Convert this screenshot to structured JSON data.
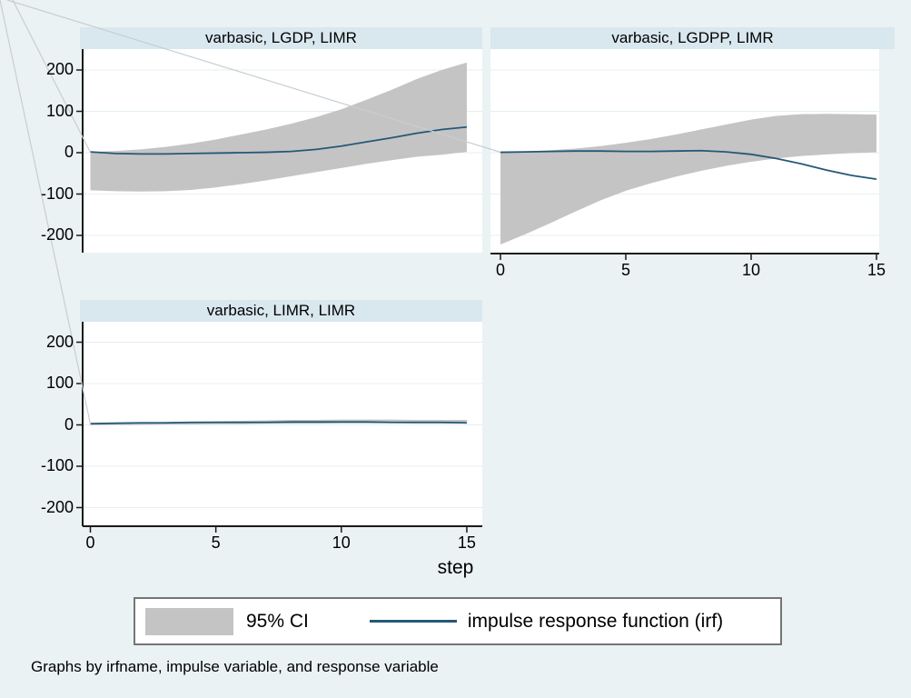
{
  "figure": {
    "background": "#eaf2f3",
    "panel_title_background": "#d9e7ef",
    "plot_background": "#ffffff",
    "gridline_color": "#e4eff4",
    "axis_color": "#1a1a1a",
    "artifact_line_color": "#c9ced1",
    "xlabel": "step",
    "caption": "Graphs by irfname, impulse variable, and response variable"
  },
  "legend": {
    "ci_label": "95% CI",
    "irf_label": "impulse response function (irf)",
    "ci_color": "#c4c4c4",
    "line_color": "#255876"
  },
  "chart_data": [
    {
      "type": "area",
      "title": "varbasic, LGDP, LIMR",
      "x": [
        0,
        1,
        2,
        3,
        4,
        5,
        6,
        7,
        8,
        9,
        10,
        11,
        12,
        13,
        14,
        15
      ],
      "series": [
        {
          "name": "irf",
          "values": [
            2,
            -2,
            -3,
            -3,
            -2,
            -1,
            0,
            1,
            3,
            8,
            16,
            26,
            36,
            47,
            56,
            62
          ]
        },
        {
          "name": "ci_upper",
          "values": [
            2,
            4,
            8,
            14,
            22,
            32,
            44,
            56,
            70,
            86,
            105,
            128,
            152,
            178,
            200,
            218
          ]
        },
        {
          "name": "ci_lower",
          "values": [
            2,
            -5,
            -10,
            -18,
            -27,
            -37,
            -47,
            -57,
            -67,
            -76,
            -84,
            -90,
            -93,
            -94,
            -93,
            -91
          ]
        }
      ],
      "xticks": [
        0,
        5,
        10,
        15
      ],
      "yticks": [
        200,
        100,
        0,
        -100,
        -200
      ],
      "ylim": [
        -250,
        250
      ],
      "show_y_axis": true,
      "show_x_axis": false,
      "grid": true
    },
    {
      "type": "area",
      "title": "varbasic, LGDPP, LIMR",
      "x": [
        0,
        1,
        2,
        3,
        4,
        5,
        6,
        7,
        8,
        9,
        10,
        11,
        12,
        13,
        14,
        15
      ],
      "series": [
        {
          "name": "irf",
          "values": [
            1,
            2,
            3,
            4,
            4,
            3,
            3,
            4,
            5,
            2,
            -4,
            -14,
            -27,
            -42,
            -55,
            -64
          ]
        },
        {
          "name": "ci_upper",
          "values": [
            1,
            3,
            6,
            10,
            16,
            24,
            33,
            44,
            56,
            68,
            80,
            89,
            93,
            94,
            93,
            92
          ]
        },
        {
          "name": "ci_lower",
          "values": [
            1,
            -1,
            -4,
            -8,
            -14,
            -22,
            -32,
            -44,
            -58,
            -74,
            -92,
            -115,
            -142,
            -170,
            -197,
            -222
          ]
        }
      ],
      "xticks": [
        0,
        5,
        10,
        15
      ],
      "yticks": [
        200,
        100,
        0,
        -100,
        -200
      ],
      "ylim": [
        -250,
        250
      ],
      "show_y_axis": false,
      "show_x_axis": true,
      "grid": true
    },
    {
      "type": "area",
      "title": "varbasic, LIMR, LIMR",
      "x": [
        0,
        1,
        2,
        3,
        4,
        5,
        6,
        7,
        8,
        9,
        10,
        11,
        12,
        13,
        14,
        15
      ],
      "series": [
        {
          "name": "irf",
          "values": [
            3,
            4,
            5,
            5,
            6,
            6,
            6,
            6,
            7,
            7,
            7,
            7,
            6,
            6,
            6,
            5
          ]
        },
        {
          "name": "ci_upper",
          "values": [
            3,
            5,
            6,
            7,
            8,
            9,
            10,
            11,
            12,
            12,
            13,
            13,
            13,
            12,
            12,
            12
          ]
        },
        {
          "name": "ci_lower",
          "values": [
            3,
            3,
            3,
            4,
            4,
            4,
            3,
            3,
            3,
            2,
            2,
            1,
            1,
            0,
            0,
            -1
          ]
        }
      ],
      "xticks": [
        0,
        5,
        10,
        15
      ],
      "yticks": [
        200,
        100,
        0,
        -100,
        -200
      ],
      "ylim": [
        -250,
        250
      ],
      "show_y_axis": true,
      "show_x_axis": true,
      "grid": true
    }
  ]
}
